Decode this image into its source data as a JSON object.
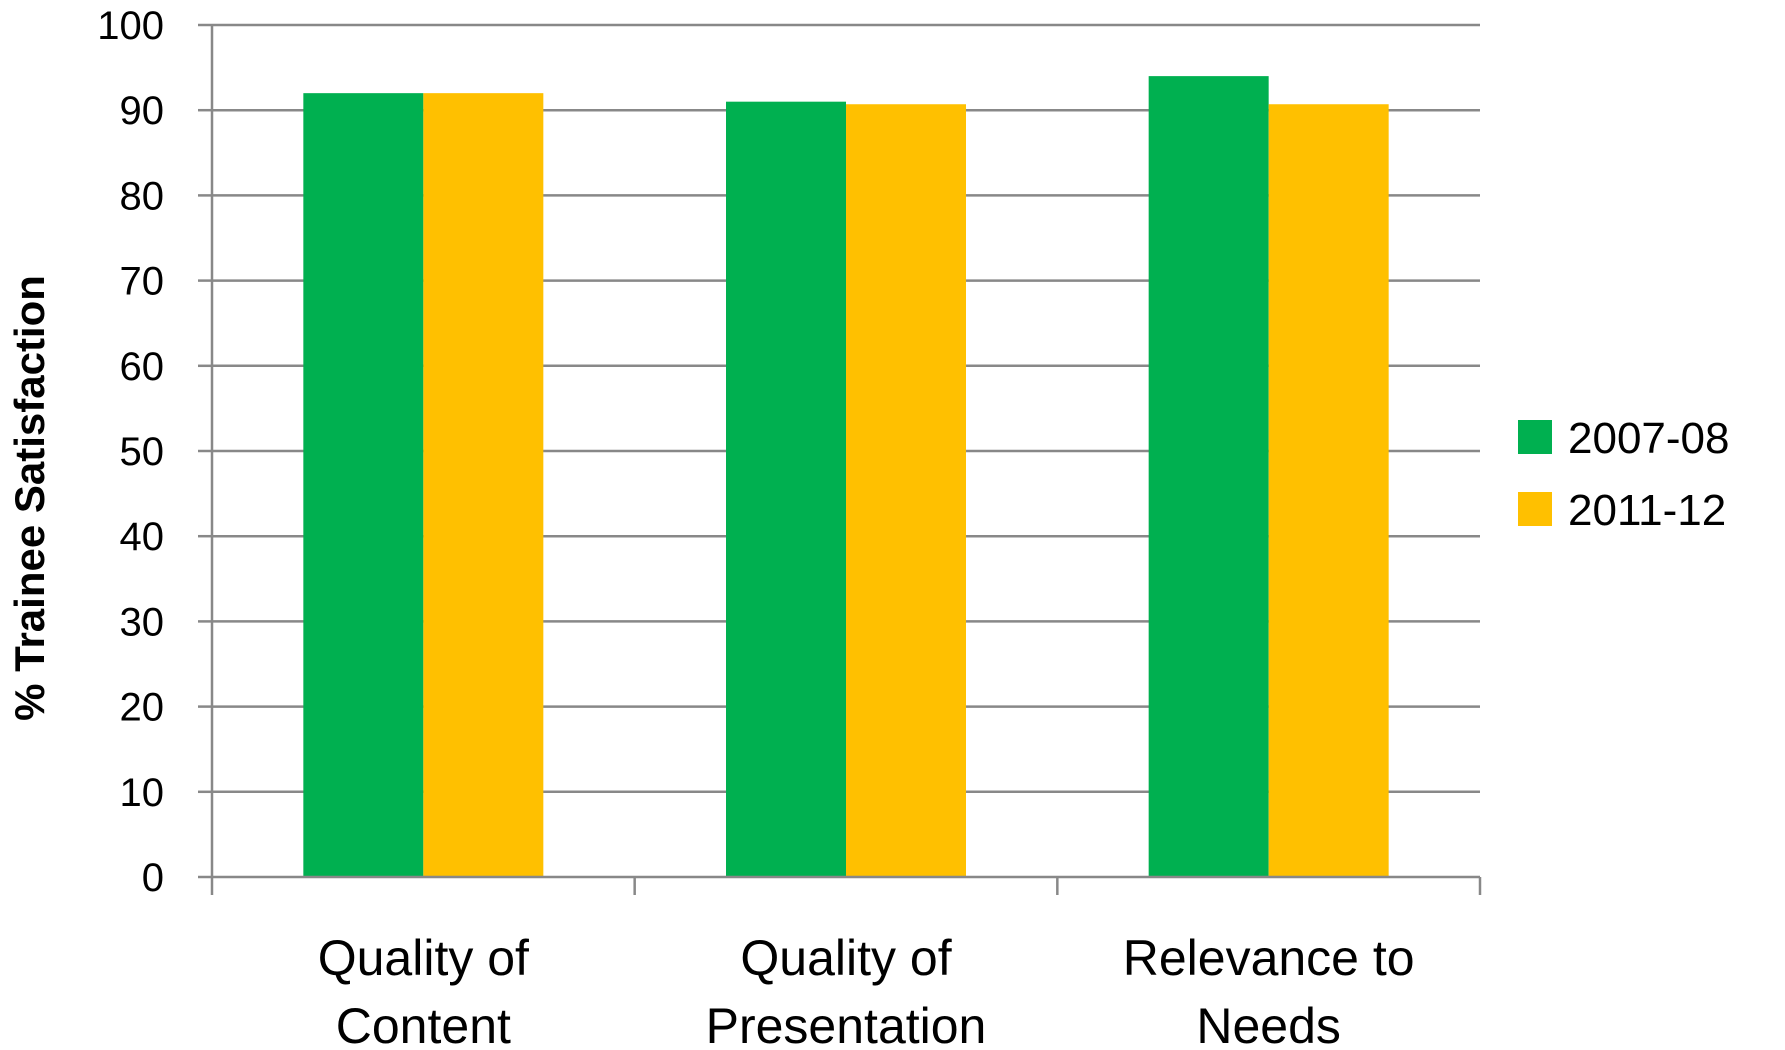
{
  "chart_data": {
    "type": "bar",
    "categories": [
      [
        "Quality of",
        "Content"
      ],
      [
        "Quality of",
        "Presentation"
      ],
      [
        "Relevance to",
        "Needs"
      ]
    ],
    "series": [
      {
        "name": "2007-08",
        "color": "#00B050",
        "values": [
          92,
          91,
          94
        ]
      },
      {
        "name": "2011-12",
        "color": "#FFC000",
        "values": [
          92,
          90.7,
          90.7
        ]
      }
    ],
    "ylabel": "% Trainee Satisfaction",
    "xlabel": "",
    "ylim": [
      0,
      100
    ],
    "yticks": [
      0,
      10,
      20,
      30,
      40,
      50,
      60,
      70,
      80,
      90,
      100
    ],
    "grid": true,
    "legend_position": "right"
  }
}
